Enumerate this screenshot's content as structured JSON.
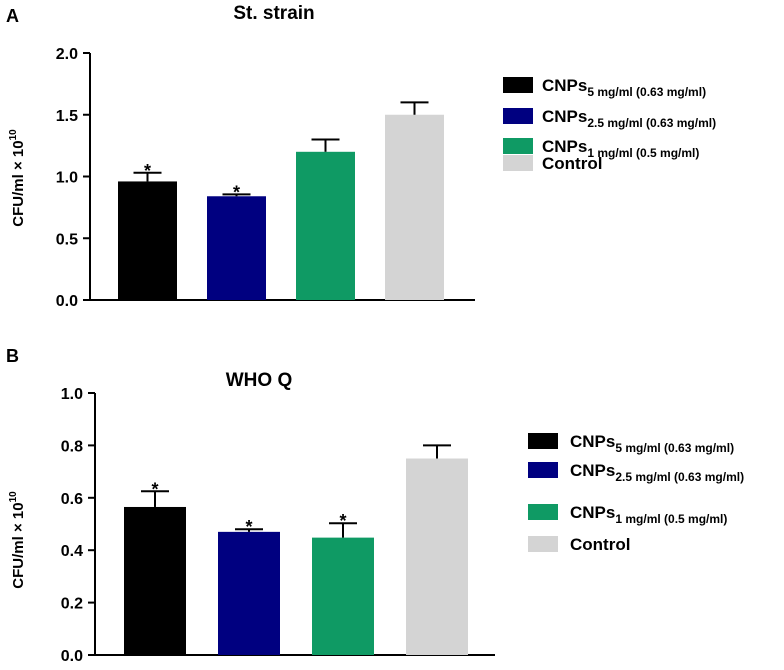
{
  "chart_data": [
    {
      "panel": "A",
      "type": "bar",
      "title": "St. strain",
      "ylabel": "CFU/ml × 10",
      "ylabel_exp": "10",
      "ylim": [
        0,
        2.0
      ],
      "yticks": [
        "0.0",
        "0.5",
        "1.0",
        "1.5",
        "2.0"
      ],
      "categories": [
        "CNPs 5 mg/ml (0.63 mg/ml)",
        "CNPs 2.5 mg/ml (0.63 mg/ml)",
        "CNPs 1 mg/ml (0.5 mg/ml)",
        "Control"
      ],
      "values": [
        0.96,
        0.84,
        1.2,
        1.5
      ],
      "errors": [
        0.07,
        0.015,
        0.1,
        0.1
      ],
      "significant": [
        true,
        true,
        false,
        false
      ],
      "legend": [
        {
          "main": "CNPs",
          "sub": "5 mg/ml (0.63 mg/ml)",
          "color": "#000000"
        },
        {
          "main": "CNPs",
          "sub": "2.5 mg/ml (0.63 mg/ml)",
          "color": "#000080"
        },
        {
          "main": "CNPs",
          "sub": "1 mg/ml (0.5 mg/ml)",
          "color": "#0f9a64"
        },
        {
          "main": "Control",
          "sub": "",
          "color": "#d4d4d4"
        }
      ]
    },
    {
      "panel": "B",
      "type": "bar",
      "title": "WHO Q",
      "ylabel": "CFU/ml × 10",
      "ylabel_exp": "10",
      "ylim": [
        0,
        1.0
      ],
      "yticks": [
        "0.0",
        "0.2",
        "0.4",
        "0.6",
        "0.8",
        "1.0"
      ],
      "categories": [
        "CNPs 5 mg/ml (0.63 mg/ml)",
        "CNPs 2.5 mg/ml (0.63 mg/ml)",
        "CNPs 1 mg/ml (0.5 mg/ml)",
        "Control"
      ],
      "values": [
        0.565,
        0.47,
        0.448,
        0.75
      ],
      "errors": [
        0.06,
        0.01,
        0.055,
        0.05
      ],
      "significant": [
        true,
        true,
        true,
        false
      ],
      "legend": [
        {
          "main": "CNPs",
          "sub": "5 mg/ml (0.63 mg/ml)",
          "color": "#000000"
        },
        {
          "main": "CNPs",
          "sub": "2.5 mg/ml (0.63 mg/ml)",
          "color": "#000080"
        },
        {
          "main": "CNPs",
          "sub": "1 mg/ml (0.5 mg/ml)",
          "color": "#0f9a64"
        },
        {
          "main": "Control",
          "sub": "",
          "color": "#d4d4d4"
        }
      ]
    }
  ],
  "significance_marker": "*"
}
